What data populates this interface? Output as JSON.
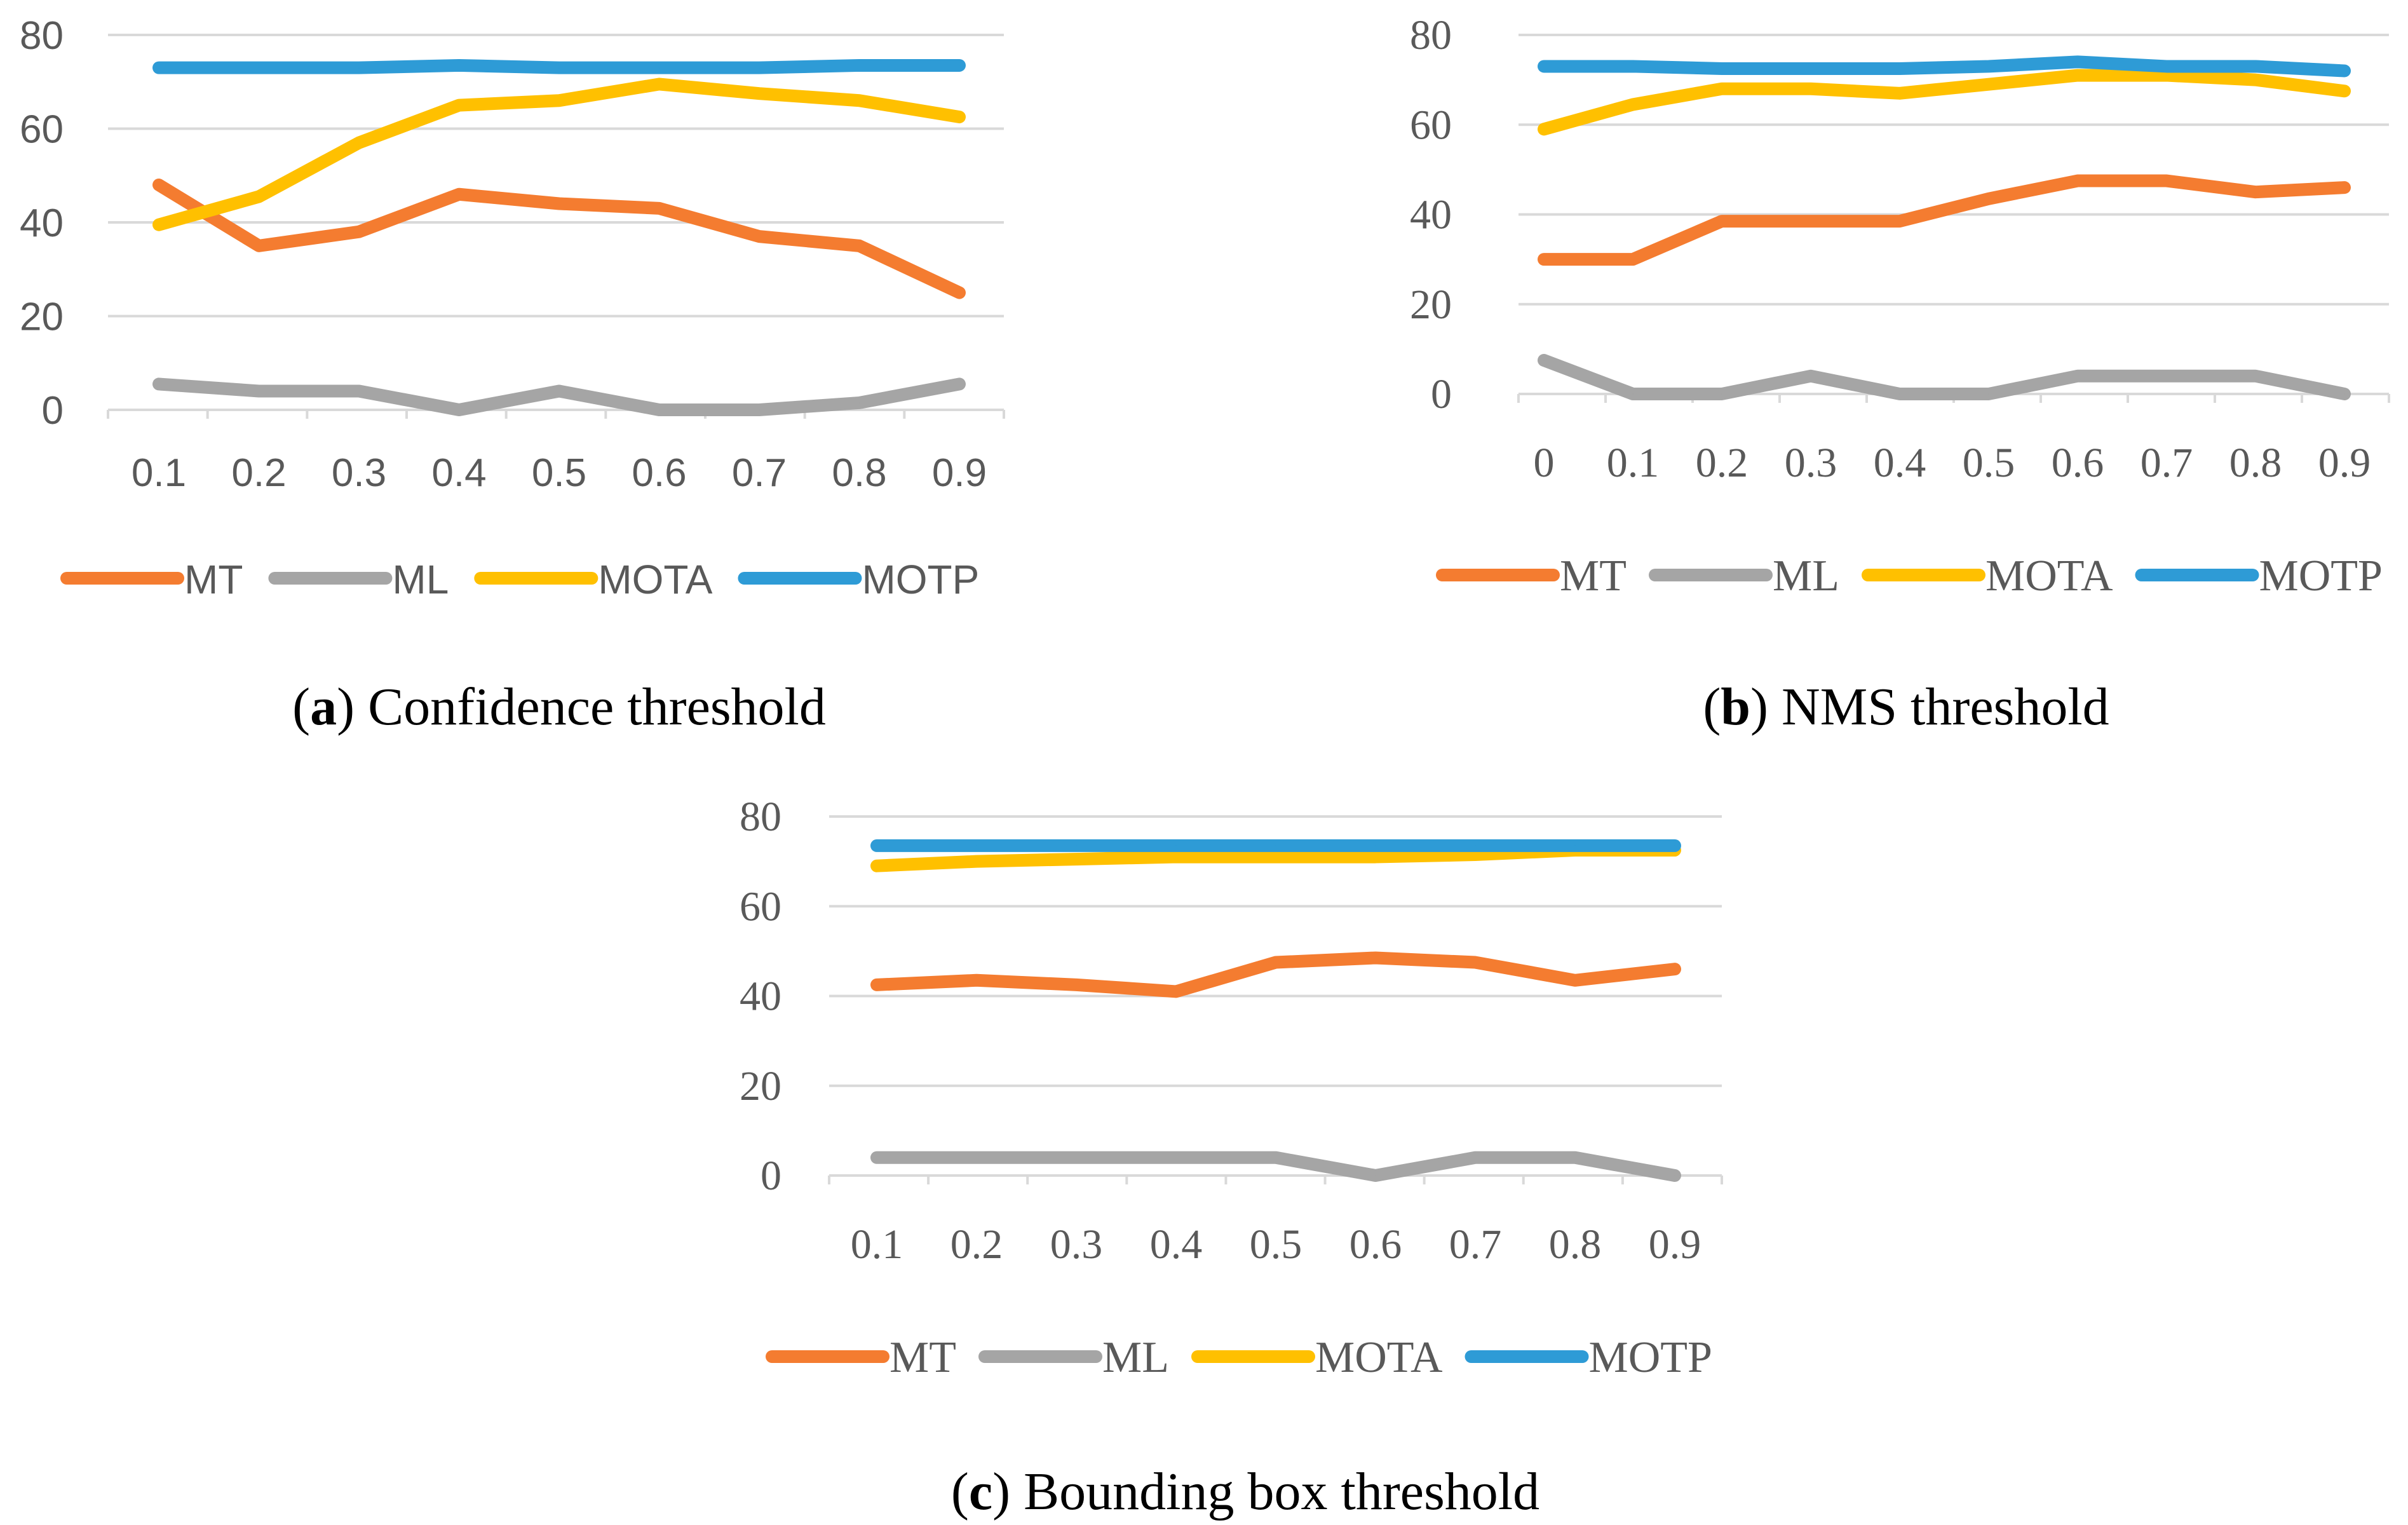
{
  "chart_data": [
    {
      "type": "line",
      "panel": "a",
      "categories": [
        "0.1",
        "0.2",
        "0.3",
        "0.4",
        "0.5",
        "0.6",
        "0.7",
        "0.8",
        "0.9"
      ],
      "ylim": [
        0,
        80
      ],
      "yticks": [
        "0",
        "20",
        "40",
        "60",
        "80"
      ],
      "series": [
        {
          "name": "MT",
          "color": "#F47C30",
          "values": [
            48,
            35,
            38,
            46,
            44,
            43,
            37,
            35,
            25
          ]
        },
        {
          "name": "ML",
          "color": "#A5A5A5",
          "values": [
            5.5,
            4,
            4,
            0,
            4,
            0,
            0,
            1.5,
            5.5
          ]
        },
        {
          "name": "MOTA",
          "color": "#FFC000",
          "values": [
            39.5,
            45.5,
            57,
            65,
            66,
            69.5,
            67.5,
            66,
            62.5
          ]
        },
        {
          "name": "MOTP",
          "color": "#2E9BD6",
          "values": [
            73,
            73,
            73,
            73.5,
            73,
            73,
            73,
            73.5,
            73.5
          ]
        }
      ],
      "caption": {
        "label": "a",
        "text": ") Confidence threshold",
        "open": "("
      },
      "grid": true,
      "legend": "bottom"
    },
    {
      "type": "line",
      "panel": "b",
      "categories": [
        "0",
        "0.1",
        "0.2",
        "0.3",
        "0.4",
        "0.5",
        "0.6",
        "0.7",
        "0.8",
        "0.9"
      ],
      "ylim": [
        0,
        80
      ],
      "yticks": [
        "0",
        "20",
        "40",
        "60",
        "80"
      ],
      "series": [
        {
          "name": "MT",
          "color": "#F47C30",
          "values": [
            30,
            30,
            38.5,
            38.5,
            38.5,
            43.5,
            47.5,
            47.5,
            45,
            46
          ]
        },
        {
          "name": "ML",
          "color": "#A5A5A5",
          "values": [
            7.5,
            0,
            0,
            4,
            0,
            0,
            4,
            4,
            4,
            0
          ]
        },
        {
          "name": "MOTA",
          "color": "#FFC000",
          "values": [
            59,
            64.5,
            68,
            68,
            67,
            69,
            71,
            71,
            70,
            67.5
          ]
        },
        {
          "name": "MOTP",
          "color": "#2E9BD6",
          "values": [
            73,
            73,
            72.5,
            72.5,
            72.5,
            73,
            74,
            73,
            73,
            72
          ]
        }
      ],
      "caption": {
        "label": "b",
        "text": ") NMS threshold",
        "open": "("
      },
      "grid": true,
      "legend": "bottom"
    },
    {
      "type": "line",
      "panel": "c",
      "categories": [
        "0.1",
        "0.2",
        "0.3",
        "0.4",
        "0.5",
        "0.6",
        "0.7",
        "0.8",
        "0.9"
      ],
      "ylim": [
        0,
        80
      ],
      "yticks": [
        "0",
        "20",
        "40",
        "60",
        "80"
      ],
      "series": [
        {
          "name": "MT",
          "color": "#F47C30",
          "values": [
            42.5,
            43.5,
            42.5,
            41,
            47.5,
            48.5,
            47.5,
            43.5,
            46
          ]
        },
        {
          "name": "ML",
          "color": "#A5A5A5",
          "values": [
            4,
            4,
            4,
            4,
            4,
            0,
            4,
            4,
            0
          ]
        },
        {
          "name": "MOTA",
          "color": "#FFC000",
          "values": [
            69,
            70,
            70.5,
            71,
            71,
            71,
            71.5,
            72.5,
            72.5
          ]
        },
        {
          "name": "MOTP",
          "color": "#2E9BD6",
          "values": [
            73.5,
            73.5,
            73.5,
            73.5,
            73.5,
            73.5,
            73.5,
            73.5,
            73.5
          ]
        }
      ],
      "caption": {
        "label": "c",
        "text": ") Bounding box threshold",
        "open": "("
      },
      "grid": true,
      "legend": "bottom"
    }
  ]
}
